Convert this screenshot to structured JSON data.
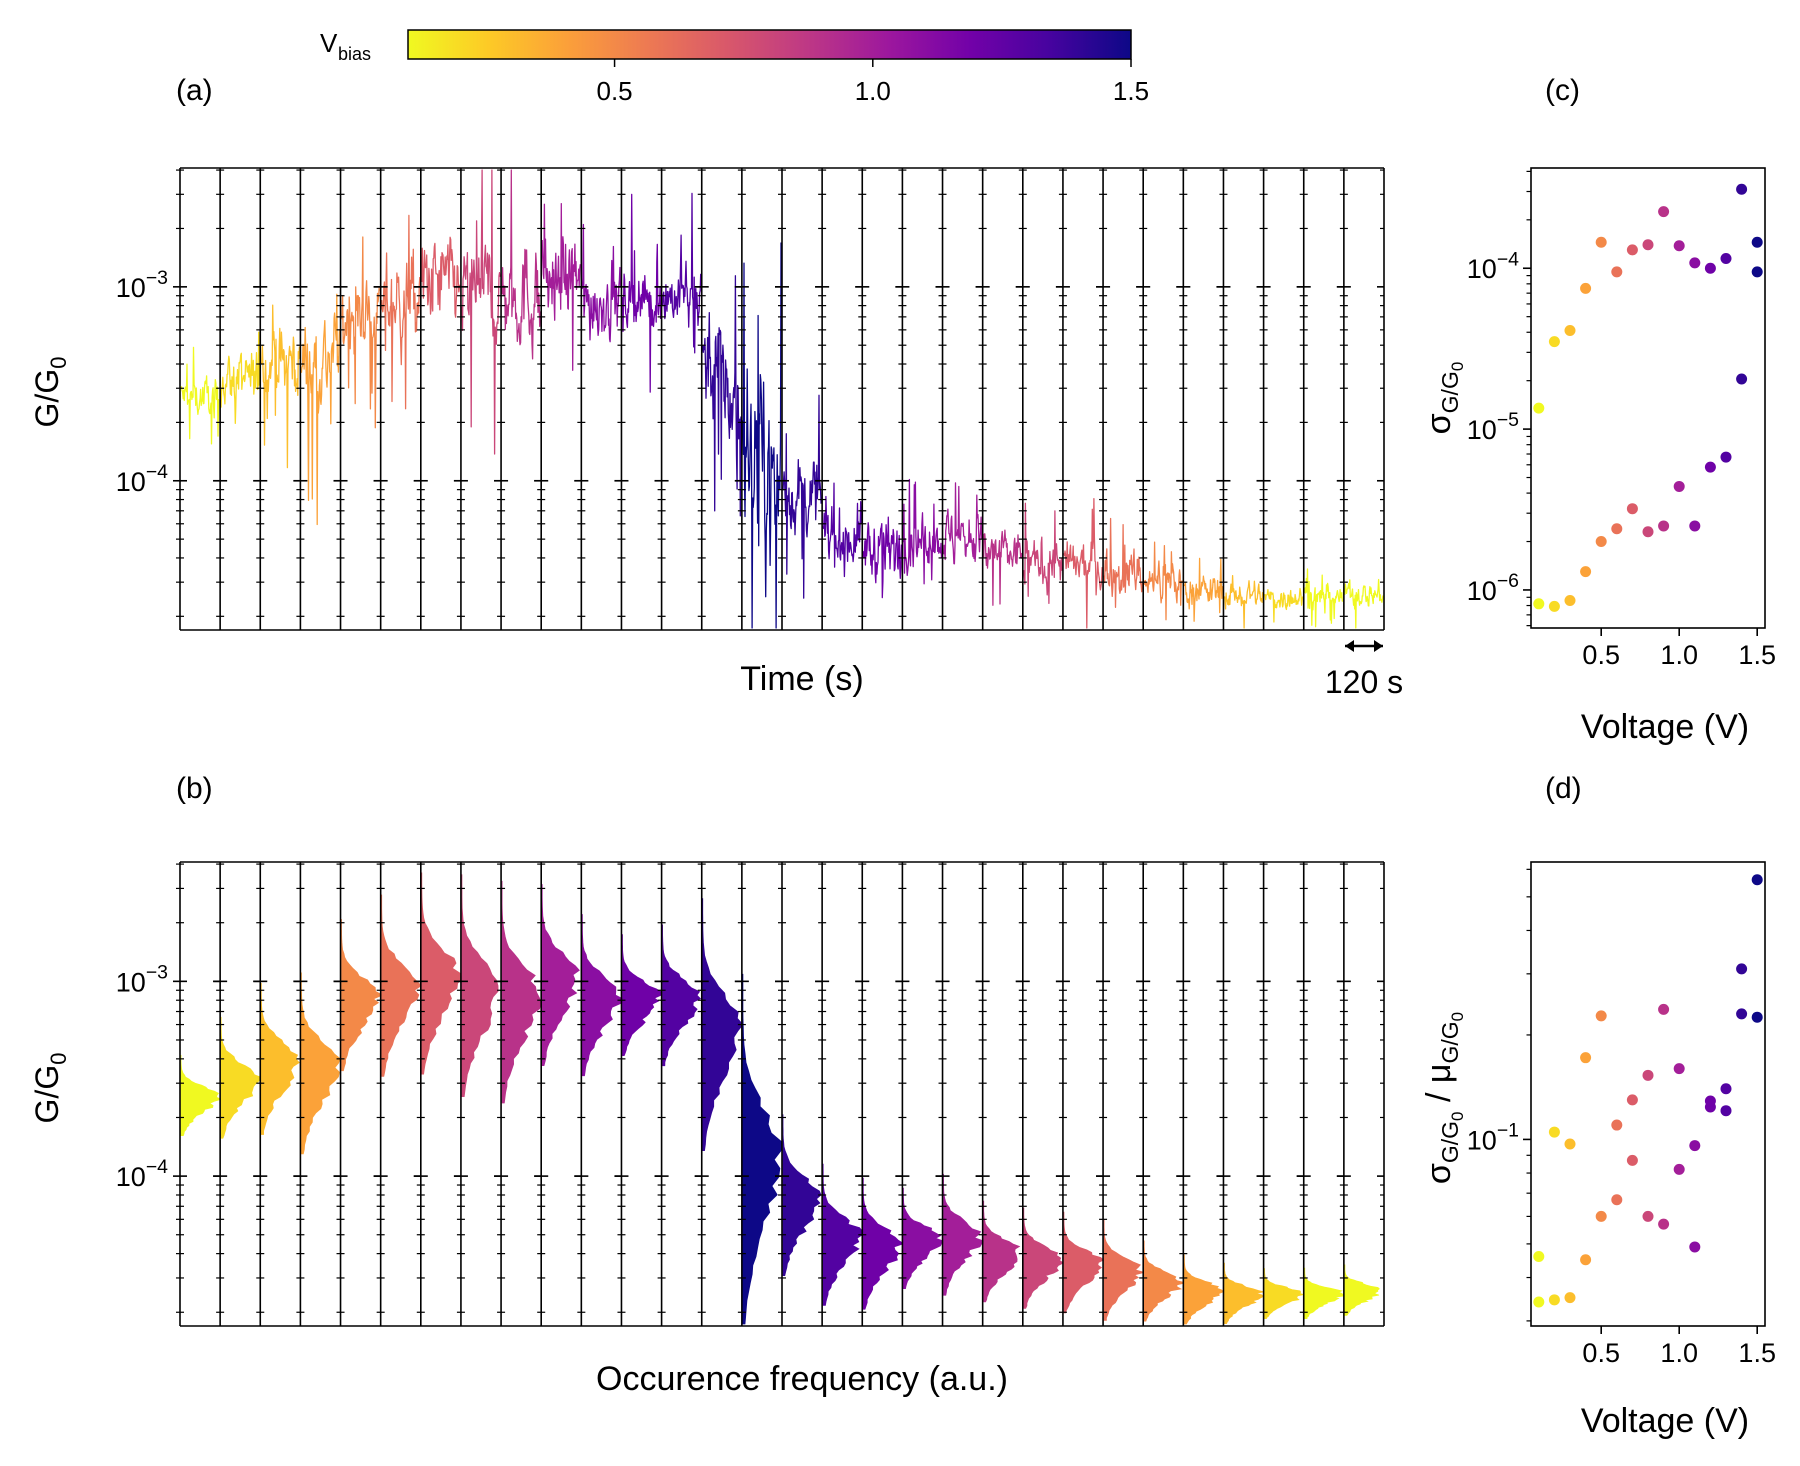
{
  "colors": {
    "plasma": [
      "#f0f921",
      "#fdca26",
      "#fb9f3a",
      "#ed7953",
      "#d8576b",
      "#bd3786",
      "#9c179e",
      "#7201a8",
      "#46039f",
      "#0d0887"
    ],
    "axis": "#000000"
  },
  "colorbar": {
    "label": "V",
    "label_sub": "bias",
    "range": [
      0.1,
      1.5
    ],
    "ticks": [
      0.5,
      1.0,
      1.5
    ],
    "tick_labels": [
      "0.5",
      "1.0",
      "1.5"
    ]
  },
  "panels": {
    "a_label": "(a)",
    "b_label": "(b)",
    "c_label": "(c)",
    "d_label": "(d)"
  },
  "scale_bar": {
    "label": "120 s"
  },
  "chart_data": [
    {
      "id": "a",
      "type": "line",
      "title": "",
      "xlabel": "Time (s)",
      "ylabel_main": "G/G",
      "ylabel_sub": "0",
      "yscale": "log",
      "ylim": [
        1.7e-05,
        0.0041
      ],
      "ytick_labels": [
        {
          "base": "10",
          "exp": "−3",
          "value": 0.001
        },
        {
          "base": "10",
          "exp": "−4",
          "value": 0.0001
        }
      ],
      "series_voltages": [
        0.1,
        0.2,
        0.3,
        0.4,
        0.5,
        0.6,
        0.7,
        0.8,
        0.9,
        1.0,
        1.1,
        1.2,
        1.3,
        1.4,
        1.5,
        1.4,
        1.3,
        1.2,
        1.1,
        1.0,
        0.9,
        0.8,
        0.7,
        0.6,
        0.5,
        0.4,
        0.3,
        0.2,
        0.1,
        0.1
      ],
      "series_median": [
        0.00027,
        0.00033,
        0.00041,
        0.00042,
        0.00071,
        0.00083,
        0.00104,
        0.00091,
        0.00091,
        0.0011,
        0.00084,
        0.00085,
        0.00089,
        0.00055,
        0.000135,
        8.5e-05,
        5.1e-05,
        4.5e-05,
        4.9e-05,
        5.1e-05,
        4.2e-05,
        3.8e-05,
        3.6e-05,
        3.4e-05,
        3e-05,
        2.7e-05,
        2.6e-05,
        2.5e-05,
        2.5e-05,
        2.6e-05
      ],
      "series_spread": [
        0.08,
        0.12,
        0.15,
        0.18,
        0.15,
        0.18,
        0.2,
        0.22,
        0.22,
        0.18,
        0.16,
        0.12,
        0.14,
        0.25,
        0.35,
        0.16,
        0.14,
        0.13,
        0.1,
        0.12,
        0.1,
        0.1,
        0.1,
        0.1,
        0.08,
        0.07,
        0.06,
        0.05,
        0.05,
        0.05
      ]
    },
    {
      "id": "b",
      "type": "histogram",
      "title": "",
      "xlabel": "Occurence frequency (a.u.)",
      "ylabel_main": "G/G",
      "ylabel_sub": "0",
      "yscale": "log",
      "ylim": [
        1.7e-05,
        0.0041
      ],
      "ytick_labels": [
        {
          "base": "10",
          "exp": "−3",
          "value": 0.001
        },
        {
          "base": "10",
          "exp": "−4",
          "value": 0.0001
        }
      ],
      "hist_peak": [
        0.00026,
        0.00032,
        0.0004,
        0.00038,
        0.00085,
        0.00095,
        0.0011,
        0.00095,
        0.00088,
        0.00108,
        0.00085,
        0.00085,
        0.00085,
        0.0006,
        0.000135,
        8e-05,
        5e-05,
        4.5e-05,
        4.8e-05,
        5e-05,
        4.1e-05,
        3.8e-05,
        3.6e-05,
        3.3e-05,
        2.9e-05,
        2.6e-05,
        2.5e-05,
        2.5e-05,
        2.5e-05,
        2.6e-05
      ]
    },
    {
      "id": "c",
      "type": "scatter",
      "title": "",
      "xlabel": "Voltage (V)",
      "ylabel_main": "σ",
      "ylabel_sub": "G/G",
      "ylabel_subsub": "0",
      "yscale": "log",
      "xlim": [
        0.05,
        1.55
      ],
      "ylim": [
        5.8e-07,
        0.00042
      ],
      "xtick_labels": [
        "0.5",
        "1.0",
        "1.5"
      ],
      "xticks": [
        0.5,
        1.0,
        1.5
      ],
      "ytick_labels": [
        {
          "base": "10",
          "exp": "−4",
          "value": 0.0001
        },
        {
          "base": "10",
          "exp": "−5",
          "value": 1e-05
        },
        {
          "base": "10",
          "exp": "−6",
          "value": 1e-06
        }
      ],
      "points": [
        {
          "x": 0.1,
          "y": 1.35e-05
        },
        {
          "x": 0.2,
          "y": 3.5e-05
        },
        {
          "x": 0.3,
          "y": 4.1e-05
        },
        {
          "x": 0.4,
          "y": 7.5e-05
        },
        {
          "x": 0.5,
          "y": 0.000145
        },
        {
          "x": 0.6,
          "y": 9.5e-05
        },
        {
          "x": 0.7,
          "y": 0.00013
        },
        {
          "x": 0.8,
          "y": 0.00014
        },
        {
          "x": 0.9,
          "y": 0.000225
        },
        {
          "x": 1.0,
          "y": 0.000138
        },
        {
          "x": 1.1,
          "y": 0.000108
        },
        {
          "x": 1.2,
          "y": 0.0001
        },
        {
          "x": 1.3,
          "y": 0.000115
        },
        {
          "x": 1.4,
          "y": 0.00031
        },
        {
          "x": 1.5,
          "y": 0.000145
        },
        {
          "x": 1.5,
          "y": 9.5e-05
        },
        {
          "x": 0.1,
          "y": 8.2e-07
        },
        {
          "x": 0.2,
          "y": 7.9e-07
        },
        {
          "x": 0.3,
          "y": 8.6e-07
        },
        {
          "x": 0.4,
          "y": 1.3e-06
        },
        {
          "x": 0.5,
          "y": 2e-06
        },
        {
          "x": 0.6,
          "y": 2.4e-06
        },
        {
          "x": 0.7,
          "y": 3.2e-06
        },
        {
          "x": 0.8,
          "y": 2.3e-06
        },
        {
          "x": 0.9,
          "y": 2.5e-06
        },
        {
          "x": 1.0,
          "y": 4.4e-06
        },
        {
          "x": 1.1,
          "y": 2.5e-06
        },
        {
          "x": 1.2,
          "y": 5.8e-06
        },
        {
          "x": 1.3,
          "y": 6.7e-06
        },
        {
          "x": 1.4,
          "y": 2.05e-05
        }
      ]
    },
    {
      "id": "d",
      "type": "scatter",
      "title": "",
      "xlabel": "Voltage (V)",
      "ylabel_main": "σ",
      "ylabel_sub": "G/G",
      "ylabel_subsub": "0",
      "ylabel_mid": " / μ",
      "yscale": "log",
      "xlim": [
        0.05,
        1.55
      ],
      "ylim": [
        0.029,
        0.63
      ],
      "xtick_labels": [
        "0.5",
        "1.0",
        "1.5"
      ],
      "xticks": [
        0.5,
        1.0,
        1.5
      ],
      "ytick_labels": [
        {
          "base": "10",
          "exp": "−1",
          "value": 0.1
        }
      ],
      "points": [
        {
          "x": 0.1,
          "y": 0.046
        },
        {
          "x": 0.2,
          "y": 0.105
        },
        {
          "x": 0.3,
          "y": 0.097
        },
        {
          "x": 0.4,
          "y": 0.045
        },
        {
          "x": 0.5,
          "y": 0.06
        },
        {
          "x": 0.6,
          "y": 0.067
        },
        {
          "x": 0.7,
          "y": 0.087
        },
        {
          "x": 0.8,
          "y": 0.06
        },
        {
          "x": 0.9,
          "y": 0.057
        },
        {
          "x": 1.0,
          "y": 0.082
        },
        {
          "x": 1.1,
          "y": 0.049
        },
        {
          "x": 1.2,
          "y": 0.124
        },
        {
          "x": 1.3,
          "y": 0.121
        },
        {
          "x": 1.4,
          "y": 0.23
        },
        {
          "x": 1.5,
          "y": 0.225
        },
        {
          "x": 0.1,
          "y": 0.034
        },
        {
          "x": 0.2,
          "y": 0.0345
        },
        {
          "x": 0.3,
          "y": 0.035
        },
        {
          "x": 0.4,
          "y": 0.172
        },
        {
          "x": 0.5,
          "y": 0.227
        },
        {
          "x": 0.6,
          "y": 0.11
        },
        {
          "x": 0.7,
          "y": 0.13
        },
        {
          "x": 0.8,
          "y": 0.153
        },
        {
          "x": 0.9,
          "y": 0.237
        },
        {
          "x": 1.0,
          "y": 0.16
        },
        {
          "x": 1.1,
          "y": 0.096
        },
        {
          "x": 1.2,
          "y": 0.129
        },
        {
          "x": 1.3,
          "y": 0.14
        },
        {
          "x": 1.4,
          "y": 0.31
        },
        {
          "x": 1.5,
          "y": 0.56
        }
      ]
    }
  ]
}
